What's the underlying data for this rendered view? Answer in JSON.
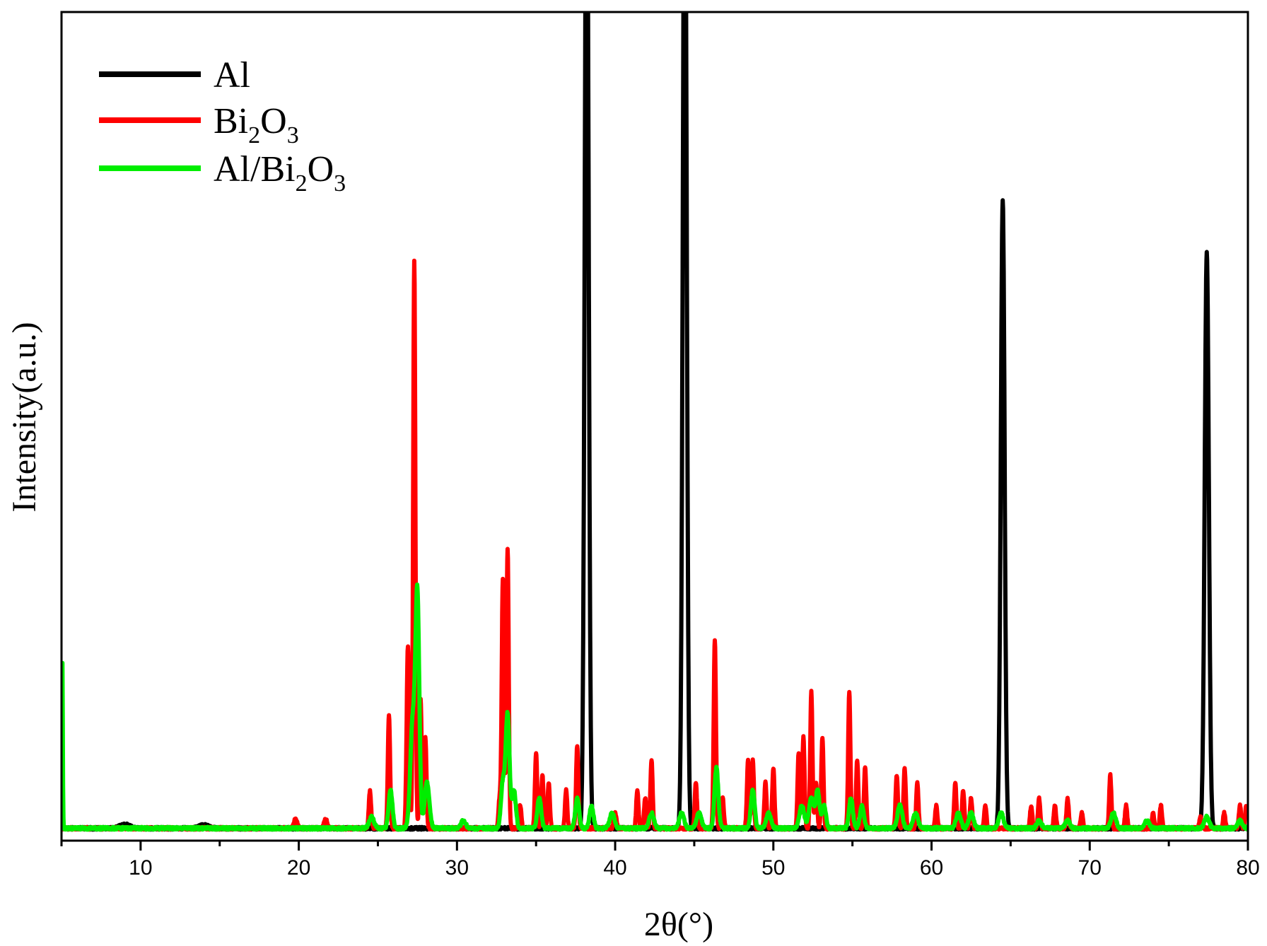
{
  "chart_data": {
    "type": "line",
    "title": "",
    "xlabel": "2θ(°)",
    "ylabel": "Intensity(a.u.)",
    "xlim": [
      5,
      80
    ],
    "ylim": [
      0,
      100
    ],
    "x_ticks": [
      10,
      20,
      30,
      40,
      50,
      60,
      70,
      80
    ],
    "grid": false,
    "legend_position": "top-left",
    "legend": [
      {
        "label_parts": [
          {
            "t": "Al",
            "sub": false
          }
        ]
      },
      {
        "label_parts": [
          {
            "t": "Bi",
            "sub": false
          },
          {
            "t": "2",
            "sub": true
          },
          {
            "t": "O",
            "sub": false
          },
          {
            "t": "3",
            "sub": true
          }
        ]
      },
      {
        "label_parts": [
          {
            "t": "Al/Bi",
            "sub": false
          },
          {
            "t": "2",
            "sub": true
          },
          {
            "t": "O",
            "sub": false
          },
          {
            "t": "3",
            "sub": true
          }
        ]
      }
    ],
    "series": [
      {
        "name": "Al",
        "color": "#000000",
        "peaks": [
          [
            38.2,
            140,
            0.12
          ],
          [
            44.4,
            140,
            0.12
          ],
          [
            64.5,
            83,
            0.12
          ],
          [
            77.4,
            76,
            0.13
          ],
          [
            9.0,
            0.5,
            0.3
          ],
          [
            14.0,
            0.4,
            0.3
          ]
        ]
      },
      {
        "name": "Bi₂O₃",
        "color": "#ff0000",
        "peaks": [
          [
            19.8,
            1.3,
            0.1
          ],
          [
            21.7,
            1.2,
            0.1
          ],
          [
            24.5,
            5,
            0.07
          ],
          [
            25.7,
            15,
            0.07
          ],
          [
            26.9,
            24,
            0.08
          ],
          [
            27.3,
            75,
            0.07
          ],
          [
            27.7,
            17,
            0.07
          ],
          [
            28.0,
            12,
            0.07
          ],
          [
            32.7,
            4,
            0.07
          ],
          [
            32.9,
            33,
            0.07
          ],
          [
            33.2,
            37,
            0.07
          ],
          [
            34.0,
            3,
            0.07
          ],
          [
            35.0,
            10,
            0.07
          ],
          [
            35.4,
            7,
            0.07
          ],
          [
            35.8,
            6,
            0.07
          ],
          [
            36.9,
            5,
            0.07
          ],
          [
            37.6,
            11,
            0.07
          ],
          [
            40.0,
            2,
            0.08
          ],
          [
            41.4,
            5,
            0.07
          ],
          [
            41.9,
            4,
            0.07
          ],
          [
            42.3,
            9,
            0.07
          ],
          [
            45.1,
            6,
            0.07
          ],
          [
            46.3,
            25,
            0.07
          ],
          [
            46.8,
            4,
            0.07
          ],
          [
            48.4,
            9,
            0.07
          ],
          [
            48.7,
            9,
            0.07
          ],
          [
            49.5,
            6,
            0.07
          ],
          [
            50.0,
            8,
            0.07
          ],
          [
            51.6,
            10,
            0.07
          ],
          [
            51.9,
            12,
            0.07
          ],
          [
            52.4,
            18,
            0.07
          ],
          [
            52.7,
            6,
            0.07
          ],
          [
            53.1,
            12,
            0.07
          ],
          [
            54.8,
            18,
            0.07
          ],
          [
            55.3,
            9,
            0.07
          ],
          [
            55.8,
            8,
            0.07
          ],
          [
            57.8,
            7,
            0.07
          ],
          [
            58.3,
            8,
            0.07
          ],
          [
            59.1,
            6,
            0.07
          ],
          [
            60.3,
            3,
            0.07
          ],
          [
            61.5,
            6,
            0.07
          ],
          [
            62.0,
            5,
            0.07
          ],
          [
            62.5,
            4,
            0.07
          ],
          [
            63.4,
            3,
            0.07
          ],
          [
            66.3,
            3,
            0.07
          ],
          [
            66.8,
            4,
            0.07
          ],
          [
            67.8,
            3,
            0.07
          ],
          [
            68.6,
            4,
            0.07
          ],
          [
            69.5,
            2,
            0.07
          ],
          [
            71.3,
            7,
            0.07
          ],
          [
            72.3,
            3,
            0.07
          ],
          [
            74.0,
            2,
            0.07
          ],
          [
            74.5,
            3,
            0.07
          ],
          [
            77.0,
            1.5,
            0.07
          ],
          [
            78.5,
            2,
            0.07
          ],
          [
            79.5,
            3,
            0.07
          ],
          [
            79.9,
            3,
            0.07
          ]
        ]
      },
      {
        "name": "Al/Bi₂O₃",
        "color": "#00ee00",
        "peaks": [
          [
            5.05,
            23,
            0.03
          ],
          [
            24.6,
            1.5,
            0.15
          ],
          [
            25.8,
            5,
            0.12
          ],
          [
            27.2,
            14,
            0.15
          ],
          [
            27.5,
            30,
            0.12
          ],
          [
            28.1,
            6,
            0.15
          ],
          [
            30.4,
            1,
            0.15
          ],
          [
            32.9,
            6,
            0.12
          ],
          [
            33.2,
            15,
            0.12
          ],
          [
            33.6,
            5,
            0.12
          ],
          [
            35.2,
            4,
            0.12
          ],
          [
            37.6,
            4,
            0.12
          ],
          [
            38.5,
            3,
            0.12
          ],
          [
            39.8,
            2,
            0.15
          ],
          [
            42.3,
            2,
            0.15
          ],
          [
            44.2,
            2,
            0.15
          ],
          [
            45.3,
            2,
            0.15
          ],
          [
            46.4,
            8,
            0.12
          ],
          [
            48.7,
            5,
            0.12
          ],
          [
            49.7,
            2,
            0.15
          ],
          [
            51.8,
            3,
            0.15
          ],
          [
            52.4,
            4,
            0.15
          ],
          [
            52.8,
            5,
            0.12
          ],
          [
            53.2,
            3,
            0.12
          ],
          [
            54.9,
            4,
            0.12
          ],
          [
            55.6,
            3,
            0.12
          ],
          [
            58.0,
            3,
            0.15
          ],
          [
            59.0,
            2,
            0.15
          ],
          [
            61.7,
            2,
            0.15
          ],
          [
            62.5,
            2,
            0.15
          ],
          [
            64.4,
            2,
            0.15
          ],
          [
            66.8,
            1,
            0.15
          ],
          [
            68.6,
            1,
            0.15
          ],
          [
            71.5,
            2,
            0.15
          ],
          [
            73.6,
            1,
            0.15
          ],
          [
            77.4,
            1.5,
            0.15
          ],
          [
            79.5,
            1,
            0.15
          ]
        ]
      }
    ]
  }
}
